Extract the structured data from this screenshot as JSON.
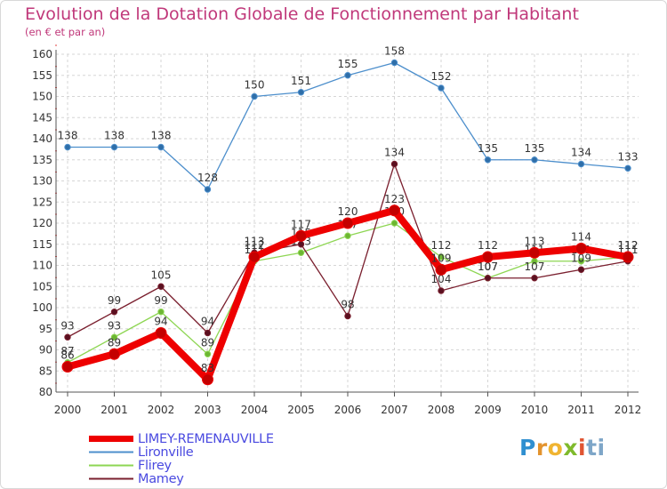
{
  "chart_data": {
    "type": "line",
    "title": "Evolution de la Dotation Globale de Fonctionnement par Habitant",
    "subtitle": "(en € et par an)",
    "xlabel": "",
    "ylabel": "",
    "ylim": [
      80,
      160
    ],
    "yticks": [
      80,
      85,
      90,
      95,
      100,
      105,
      110,
      115,
      120,
      125,
      130,
      135,
      140,
      145,
      150,
      155,
      160
    ],
    "categories": [
      "2000",
      "2001",
      "2002",
      "2003",
      "2004",
      "2005",
      "2006",
      "2007",
      "2008",
      "2009",
      "2010",
      "2011",
      "2012"
    ],
    "legend_position": "bottom-left",
    "grid": true,
    "series": [
      {
        "name": "Lironville",
        "color": "#4d8fcc",
        "values": [
          138,
          138,
          138,
          128,
          150,
          151,
          155,
          158,
          152,
          135,
          135,
          134,
          133
        ]
      },
      {
        "name": "Flirey",
        "color": "#8ed653",
        "values": [
          87,
          93,
          99,
          89,
          111,
          113,
          117,
          120,
          112,
          107,
          111,
          111,
          112
        ]
      },
      {
        "name": "Mamey",
        "color": "#7a1f2e",
        "values": [
          93,
          99,
          105,
          94,
          113,
          115,
          98,
          134,
          104,
          107,
          107,
          109,
          111
        ]
      },
      {
        "name": "LIMEY-REMENAUVILLE",
        "color": "#ee0000",
        "values": [
          86,
          89,
          94,
          83,
          112,
          117,
          120,
          123,
          109,
          112,
          113,
          114,
          112
        ]
      }
    ],
    "legend_order": [
      "LIMEY-REMENAUVILLE",
      "Lironville",
      "Flirey",
      "Mamey"
    ]
  },
  "logo": {
    "letters": [
      "P",
      "r",
      "o",
      "x",
      "i",
      "t",
      "i"
    ]
  }
}
